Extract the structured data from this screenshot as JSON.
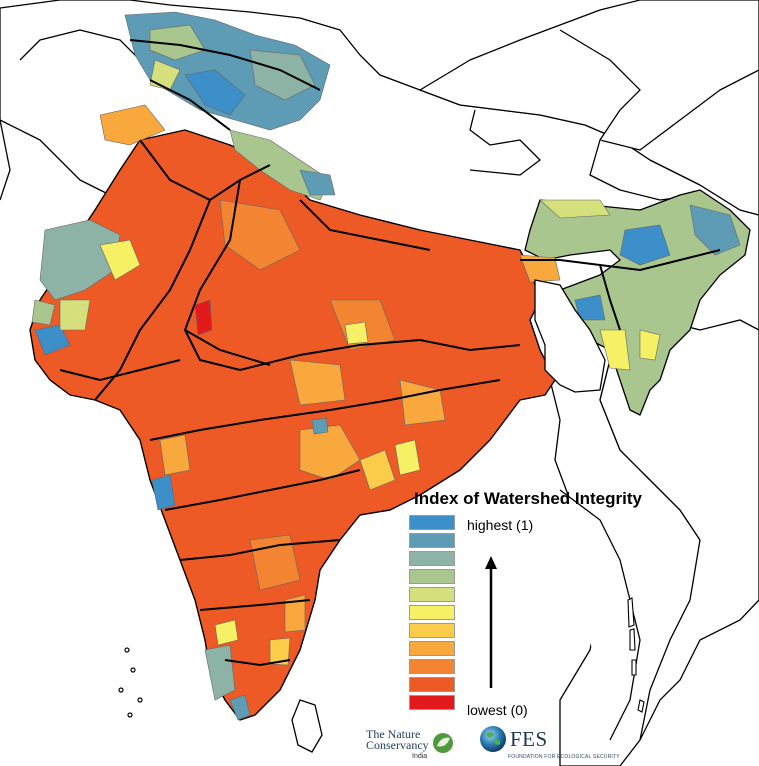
{
  "legend": {
    "title": "Index of Watershed Integrity",
    "high_label": "highest (1)",
    "low_label": "lowest (0)",
    "colors": [
      "#3c8fc9",
      "#5e9bb5",
      "#8cb3a5",
      "#a9c68f",
      "#d5e07c",
      "#f6f164",
      "#fbcb4a",
      "#f8a83c",
      "#f38532",
      "#ee5a26",
      "#e31a1c"
    ]
  },
  "logos": {
    "tnc_line1": "The Nature",
    "tnc_line2": "Conservancy",
    "tnc_sub": "India",
    "fes_text": "FES",
    "fes_sub": "FOUNDATION FOR ECOLOGICAL SECURITY"
  }
}
